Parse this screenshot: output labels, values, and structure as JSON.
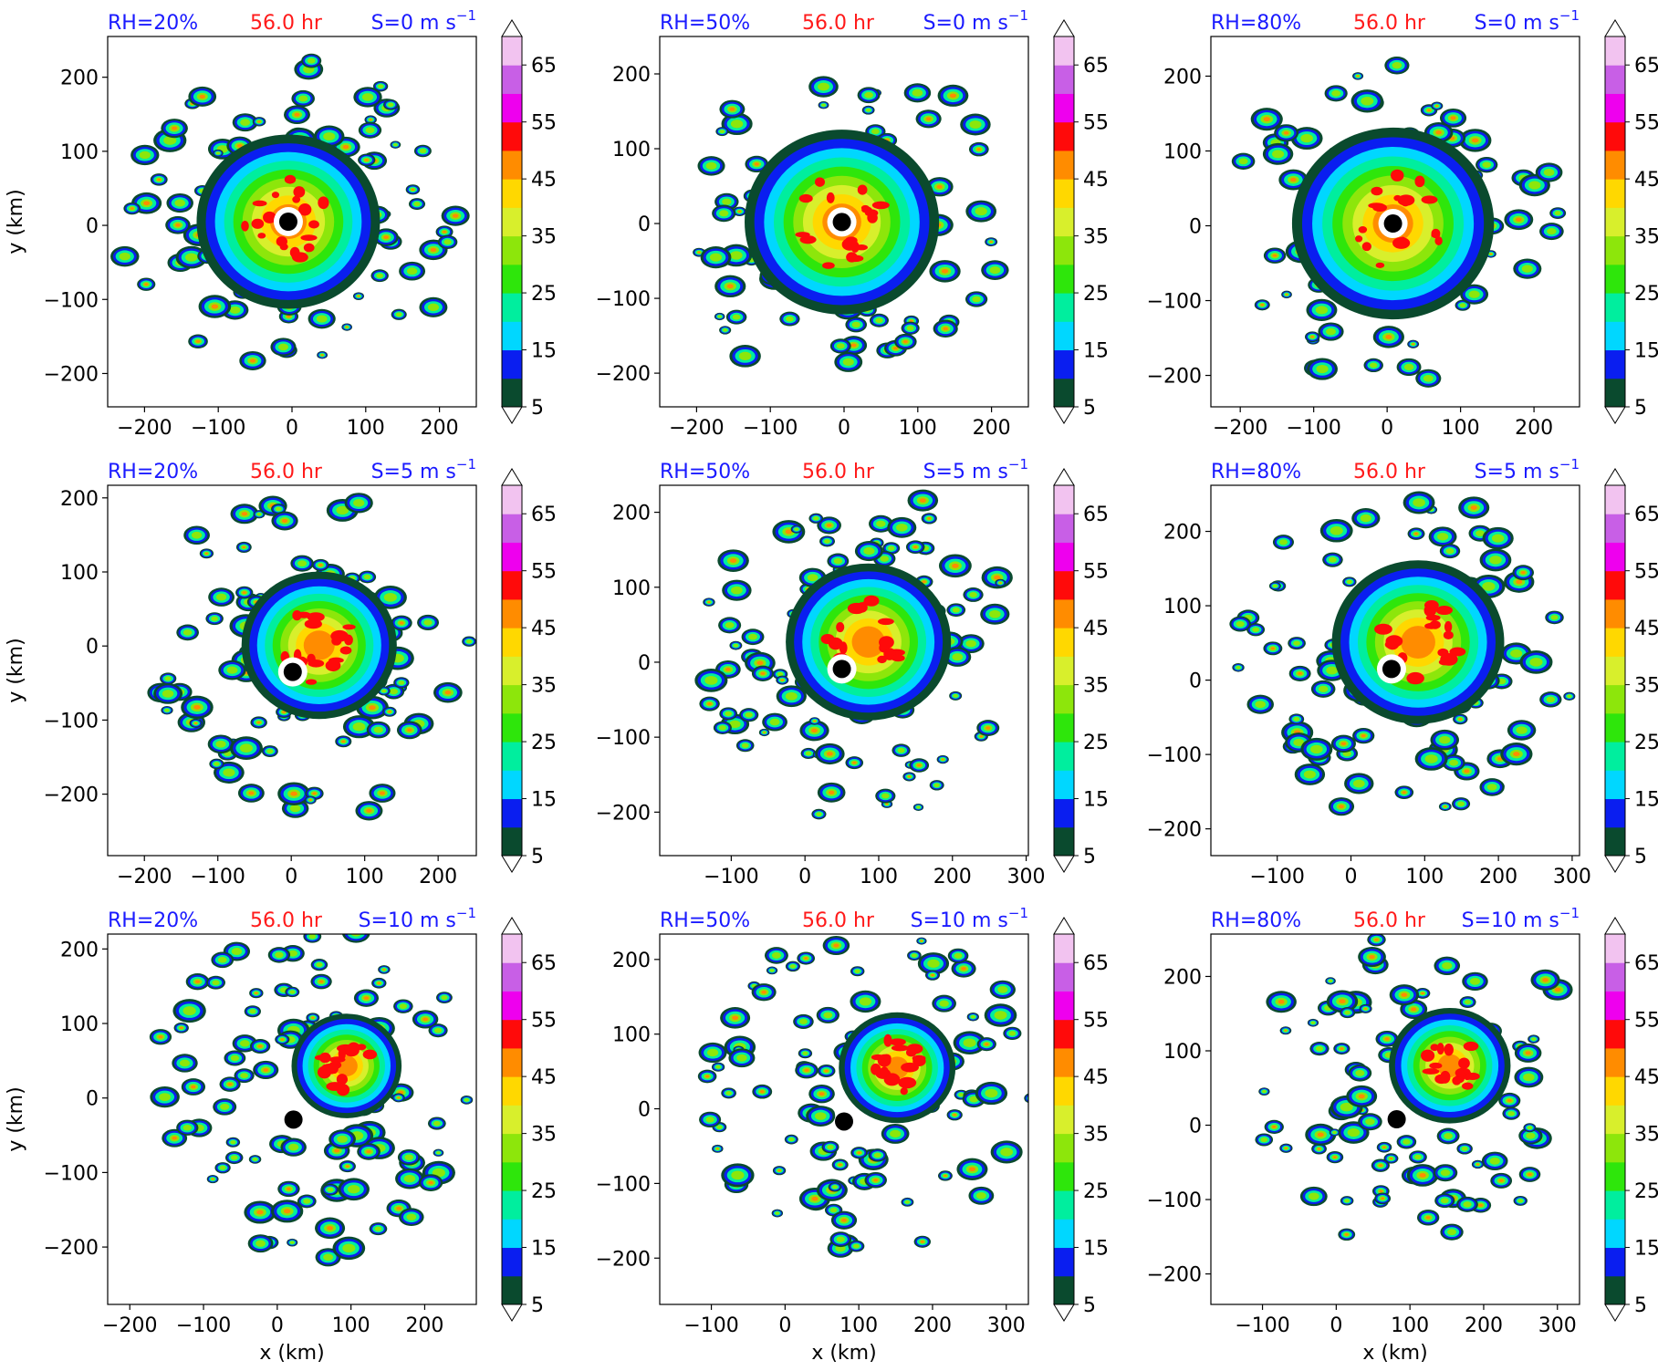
{
  "figure": {
    "xlabel": "x (km)",
    "ylabel": "y (km)",
    "colorbar_levels": [
      5,
      10,
      15,
      20,
      25,
      30,
      35,
      40,
      45,
      50,
      55,
      60,
      65,
      70
    ],
    "colorbar_ticks": [
      "5",
      "15",
      "25",
      "35",
      "45",
      "55",
      "65"
    ],
    "colormap": [
      "#0a4a2e",
      "#0a1ef0",
      "#00d7ff",
      "#00ee9e",
      "#2ee60b",
      "#8de60b",
      "#d8ef2c",
      "#ffd800",
      "#ff8c00",
      "#ff0a0a",
      "#ee00ee",
      "#c85fe6",
      "#f2c3f0"
    ],
    "title_colors": {
      "rh": "#1a1aff",
      "time": "#ff1a1a",
      "shear": "#1a1aff"
    },
    "center_marker_color": "#000000"
  },
  "chart_data": [
    {
      "type": "heatmap",
      "row": 0,
      "col": 0,
      "rh_label": "RH=20%",
      "time_label": "56.0 hr",
      "shear_label": "S=0 m s",
      "shear_sup": "−1",
      "xlim": [
        -250,
        250
      ],
      "ylim": [
        -245,
        255
      ],
      "xticks": [
        -200,
        -100,
        0,
        100,
        200
      ],
      "yticks": [
        -200,
        -100,
        0,
        100,
        200
      ],
      "center": [
        -5,
        5
      ],
      "show_ylabel": true,
      "show_xlabel": false
    },
    {
      "type": "heatmap",
      "row": 0,
      "col": 1,
      "rh_label": "RH=50%",
      "time_label": "56.0 hr",
      "shear_label": "S=0 m s",
      "shear_sup": "−1",
      "xlim": [
        -250,
        250
      ],
      "ylim": [
        -245,
        250
      ],
      "xticks": [
        -200,
        -100,
        0,
        100,
        200
      ],
      "yticks": [
        -200,
        -100,
        0,
        100,
        200
      ],
      "center": [
        -3,
        2
      ],
      "show_ylabel": false,
      "show_xlabel": false
    },
    {
      "type": "heatmap",
      "row": 0,
      "col": 2,
      "rh_label": "RH=80%",
      "time_label": "56.0 hr",
      "shear_label": "S=0 m s",
      "shear_sup": "−1",
      "xlim": [
        -240,
        262
      ],
      "ylim": [
        -242,
        253
      ],
      "xticks": [
        -200,
        -100,
        0,
        100,
        200
      ],
      "yticks": [
        -200,
        -100,
        0,
        100,
        200
      ],
      "center": [
        8,
        3
      ],
      "show_ylabel": false,
      "show_xlabel": false
    },
    {
      "type": "heatmap",
      "row": 1,
      "col": 0,
      "rh_label": "RH=20%",
      "time_label": "56.0 hr",
      "shear_label": "S=5 m s",
      "shear_sup": "−1",
      "xlim": [
        -250,
        252
      ],
      "ylim": [
        -283,
        217
      ],
      "xticks": [
        -200,
        -100,
        0,
        100,
        200
      ],
      "yticks": [
        -200,
        -100,
        0,
        100,
        200
      ],
      "center": [
        2,
        -35
      ],
      "show_ylabel": true,
      "show_xlabel": false
    },
    {
      "type": "heatmap",
      "row": 1,
      "col": 1,
      "rh_label": "RH=50%",
      "time_label": "56.0 hr",
      "shear_label": "S=5 m s",
      "shear_sup": "−1",
      "xlim": [
        -197,
        303
      ],
      "ylim": [
        -258,
        236
      ],
      "xticks": [
        -100,
        0,
        100,
        200,
        300
      ],
      "yticks": [
        -200,
        -100,
        0,
        100,
        200
      ],
      "center": [
        50,
        -9
      ],
      "show_ylabel": false,
      "show_xlabel": false
    },
    {
      "type": "heatmap",
      "row": 1,
      "col": 2,
      "rh_label": "RH=80%",
      "time_label": "56.0 hr",
      "shear_label": "S=5 m s",
      "shear_sup": "−1",
      "xlim": [
        -190,
        310
      ],
      "ylim": [
        -236,
        262
      ],
      "xticks": [
        -100,
        0,
        100,
        200,
        300
      ],
      "yticks": [
        -200,
        -100,
        0,
        100,
        200
      ],
      "center": [
        55,
        15
      ],
      "show_ylabel": false,
      "show_xlabel": false
    },
    {
      "type": "heatmap",
      "row": 2,
      "col": 0,
      "rh_label": "RH=20%",
      "time_label": "56.0 hr",
      "shear_label": "S=10 m s",
      "shear_sup": "−1",
      "xlim": [
        -230,
        270
      ],
      "ylim": [
        -277,
        220
      ],
      "xticks": [
        -200,
        -100,
        0,
        100,
        200
      ],
      "yticks": [
        -200,
        -100,
        0,
        100,
        200
      ],
      "center": [
        22,
        -29
      ],
      "show_ylabel": true,
      "show_xlabel": true
    },
    {
      "type": "heatmap",
      "row": 2,
      "col": 1,
      "rh_label": "RH=50%",
      "time_label": "56.0 hr",
      "shear_label": "S=10 m s",
      "shear_sup": "−1",
      "xlim": [
        -170,
        330
      ],
      "ylim": [
        -262,
        234
      ],
      "xticks": [
        -100,
        0,
        100,
        200,
        300
      ],
      "yticks": [
        -200,
        -100,
        0,
        100,
        200
      ],
      "center": [
        80,
        -17
      ],
      "show_ylabel": false,
      "show_xlabel": true
    },
    {
      "type": "heatmap",
      "row": 2,
      "col": 2,
      "rh_label": "RH=80%",
      "time_label": "56.0 hr",
      "shear_label": "S=10 m s",
      "shear_sup": "−1",
      "xlim": [
        -170,
        330
      ],
      "ylim": [
        -241,
        257
      ],
      "xticks": [
        -100,
        0,
        100,
        200,
        300
      ],
      "yticks": [
        -200,
        -100,
        0,
        100,
        200
      ],
      "center": [
        82,
        8
      ],
      "show_ylabel": false,
      "show_xlabel": true
    }
  ]
}
